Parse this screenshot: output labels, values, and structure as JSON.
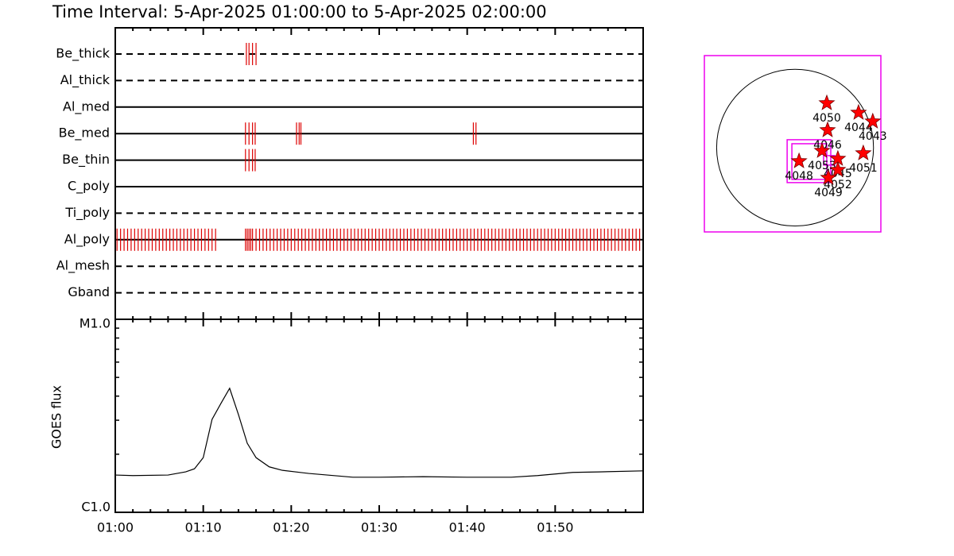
{
  "chart_data": [
    {
      "type": "timeline",
      "title": "Time Interval:  5-Apr-2025 01:00:00 to  5-Apr-2025 02:00:00",
      "xlim": [
        0,
        60
      ],
      "series": [
        {
          "name": "Be_thick",
          "style": "dashed",
          "color": "#dd0000",
          "values": [
            14.9,
            15.2,
            15.6,
            16.0
          ]
        },
        {
          "name": "Al_thick",
          "style": "dashed",
          "color": "#dd0000",
          "values": []
        },
        {
          "name": "Al_med",
          "style": "solid",
          "color": "#dd0000",
          "values": []
        },
        {
          "name": "Be_med",
          "style": "solid",
          "color": "#dd0000",
          "values": [
            14.8,
            15.2,
            15.6,
            15.9,
            20.6,
            20.9,
            21.1,
            40.7,
            41.0
          ]
        },
        {
          "name": "Be_thin",
          "style": "solid",
          "color": "#dd0000",
          "values": [
            14.8,
            15.2,
            15.6,
            15.9
          ]
        },
        {
          "name": "C_poly",
          "style": "solid",
          "color": "#dd0000",
          "values": []
        },
        {
          "name": "Ti_poly",
          "style": "dashed",
          "color": "#dd0000",
          "values": []
        },
        {
          "name": "Al_poly",
          "style": "solid",
          "color": "#dd0000",
          "values": [
            0.2,
            0.6,
            1.0,
            1.4,
            1.8,
            2.2,
            2.6,
            3.0,
            3.4,
            3.8,
            4.2,
            4.6,
            5.0,
            5.4,
            5.8,
            6.2,
            6.6,
            7.0,
            7.4,
            7.8,
            8.2,
            8.6,
            9.0,
            9.4,
            9.8,
            10.2,
            10.6,
            11.0,
            11.4,
            14.8,
            15.0,
            15.2,
            15.4,
            15.6,
            16.0,
            16.4,
            16.8,
            17.2,
            17.6,
            18.0,
            18.4,
            18.8,
            19.2,
            19.6,
            20.0,
            20.4,
            20.8,
            21.2,
            21.6,
            22.0,
            22.4,
            22.8,
            23.2,
            23.6,
            24.0,
            24.4,
            24.8,
            25.2,
            25.6,
            26.0,
            26.4,
            26.8,
            27.2,
            27.6,
            28.0,
            28.4,
            28.8,
            29.2,
            29.6,
            30.0,
            30.4,
            30.8,
            31.2,
            31.6,
            32.0,
            32.4,
            32.8,
            33.2,
            33.6,
            34.0,
            34.4,
            34.8,
            35.2,
            35.6,
            36.0,
            36.4,
            36.8,
            37.2,
            37.6,
            38.0,
            38.4,
            38.8,
            39.2,
            39.6,
            40.0,
            40.4,
            40.8,
            41.2,
            41.6,
            42.0,
            42.4,
            42.8,
            43.2,
            43.6,
            44.0,
            44.4,
            44.8,
            45.2,
            45.6,
            46.0,
            46.4,
            46.8,
            47.2,
            47.6,
            48.0,
            48.4,
            48.8,
            49.2,
            49.6,
            50.0,
            50.4,
            50.8,
            51.2,
            51.6,
            52.0,
            52.4,
            52.8,
            53.2,
            53.6,
            54.0,
            54.4,
            54.8,
            55.2,
            55.6,
            56.0,
            56.4,
            56.8,
            57.2,
            57.6,
            58.0,
            58.4,
            58.8,
            59.2,
            59.6
          ]
        },
        {
          "name": "Al_mesh",
          "style": "dashed",
          "color": "#dd0000",
          "values": []
        },
        {
          "name": "Gband",
          "style": "dashed",
          "color": "#dd0000",
          "values": []
        }
      ]
    },
    {
      "type": "line",
      "ylabel": "GOES flux",
      "log": true,
      "color": "#000000",
      "x": [
        0,
        2,
        6,
        8,
        9,
        10,
        11,
        12,
        13,
        14,
        15,
        16,
        17.5,
        19,
        22,
        27,
        30,
        35,
        40,
        45,
        48,
        52,
        55,
        60
      ],
      "values": [
        1.56e-06,
        1.55e-06,
        1.56e-06,
        1.62e-06,
        1.68e-06,
        1.92e-06,
        3.03e-06,
        3.66e-06,
        4.39e-06,
        3.21e-06,
        2.28e-06,
        1.92e-06,
        1.72e-06,
        1.65e-06,
        1.59e-06,
        1.52e-06,
        1.52e-06,
        1.53e-06,
        1.52e-06,
        1.52e-06,
        1.55e-06,
        1.61e-06,
        1.62e-06,
        1.64e-06
      ],
      "xlim": [
        0,
        60
      ],
      "xticks": [
        {
          "value": 0,
          "label": "01:00"
        },
        {
          "value": 10,
          "label": "01:10"
        },
        {
          "value": 20,
          "label": "01:20"
        },
        {
          "value": 30,
          "label": "01:30"
        },
        {
          "value": 40,
          "label": "01:40"
        },
        {
          "value": 50,
          "label": "01:50"
        }
      ],
      "xminor": [
        2,
        4,
        6,
        8,
        12,
        14,
        16,
        18,
        22,
        24,
        26,
        28,
        32,
        34,
        36,
        38,
        42,
        44,
        46,
        48,
        52,
        54,
        56,
        58
      ],
      "ylim": [
        1e-06,
        1e-05
      ],
      "yticks": [
        {
          "value": 1e-06,
          "label": "C1.0"
        },
        {
          "value": 1e-05,
          "label": "M1.0"
        }
      ],
      "yminor": [
        2e-06,
        3e-06,
        4e-06,
        5e-06,
        6e-06,
        7e-06,
        8e-06,
        9e-06
      ]
    },
    {
      "type": "map",
      "xlim": [
        -1110,
        1050
      ],
      "ylim": [
        -1030,
        1125
      ],
      "radius": 960,
      "frame_color": "#ee00ee",
      "color": "#ff0000",
      "x": [
        388,
        777,
        951,
        398,
        330,
        524,
        835,
        49,
        524,
        408
      ],
      "y": [
        544,
        427,
        320,
        214,
        -39,
        -136,
        -68,
        -165,
        -272,
        -369
      ],
      "labels": [
        "4050",
        "4044",
        "4043",
        "4046",
        "4053",
        "4045",
        "4051",
        "4048",
        "4052",
        "4049"
      ],
      "fov": [
        [
          -97,
          -427,
          437,
          97
        ],
        [
          -39,
          -388,
          388,
          48
        ],
        [
          349,
          -213,
          485,
          -97
        ]
      ]
    }
  ]
}
